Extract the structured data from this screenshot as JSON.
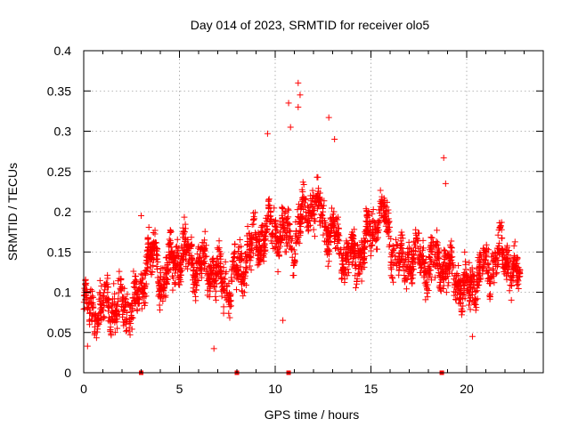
{
  "chart_data": {
    "type": "scatter",
    "title": "Day 014 of 2023, SRMTID for receiver olo5",
    "xlabel": "GPS time / hours",
    "ylabel": "SRMTID / TECUs",
    "xlim": [
      0,
      24
    ],
    "ylim": [
      0,
      0.4
    ],
    "xticks": [
      0,
      5,
      10,
      15,
      20
    ],
    "xtick_labels": [
      "0",
      "5",
      "10",
      "15",
      "20"
    ],
    "yticks": [
      0,
      0.05,
      0.1,
      0.15,
      0.2,
      0.25,
      0.3,
      0.35,
      0.4
    ],
    "ytick_labels": [
      "0",
      "0.05",
      "0.1",
      "0.15",
      "0.2",
      "0.25",
      "0.3",
      "0.35",
      "0.4"
    ],
    "grid": true,
    "marker": "+",
    "color": "#ff0000",
    "series": [
      {
        "name": "SRMTID",
        "trend": [
          {
            "x": 0.0,
            "y": 0.085
          },
          {
            "x": 0.5,
            "y": 0.075
          },
          {
            "x": 1.0,
            "y": 0.08
          },
          {
            "x": 1.5,
            "y": 0.085
          },
          {
            "x": 2.0,
            "y": 0.08
          },
          {
            "x": 2.5,
            "y": 0.085
          },
          {
            "x": 3.0,
            "y": 0.09
          },
          {
            "x": 3.3,
            "y": 0.15
          },
          {
            "x": 3.6,
            "y": 0.145
          },
          {
            "x": 4.0,
            "y": 0.12
          },
          {
            "x": 4.5,
            "y": 0.13
          },
          {
            "x": 5.0,
            "y": 0.15
          },
          {
            "x": 5.5,
            "y": 0.14
          },
          {
            "x": 6.0,
            "y": 0.135
          },
          {
            "x": 6.5,
            "y": 0.13
          },
          {
            "x": 7.0,
            "y": 0.12
          },
          {
            "x": 7.5,
            "y": 0.11
          },
          {
            "x": 8.0,
            "y": 0.125
          },
          {
            "x": 8.5,
            "y": 0.145
          },
          {
            "x": 9.0,
            "y": 0.16
          },
          {
            "x": 9.5,
            "y": 0.175
          },
          {
            "x": 10.0,
            "y": 0.18
          },
          {
            "x": 10.5,
            "y": 0.17
          },
          {
            "x": 11.0,
            "y": 0.16
          },
          {
            "x": 11.5,
            "y": 0.2
          },
          {
            "x": 12.0,
            "y": 0.21
          },
          {
            "x": 12.5,
            "y": 0.185
          },
          {
            "x": 13.0,
            "y": 0.17
          },
          {
            "x": 13.5,
            "y": 0.15
          },
          {
            "x": 14.0,
            "y": 0.14
          },
          {
            "x": 14.5,
            "y": 0.15
          },
          {
            "x": 15.0,
            "y": 0.17
          },
          {
            "x": 15.5,
            "y": 0.2
          },
          {
            "x": 16.0,
            "y": 0.17
          },
          {
            "x": 16.5,
            "y": 0.13
          },
          {
            "x": 17.0,
            "y": 0.14
          },
          {
            "x": 17.5,
            "y": 0.145
          },
          {
            "x": 18.0,
            "y": 0.135
          },
          {
            "x": 18.5,
            "y": 0.14
          },
          {
            "x": 19.0,
            "y": 0.13
          },
          {
            "x": 19.5,
            "y": 0.115
          },
          {
            "x": 20.0,
            "y": 0.1
          },
          {
            "x": 20.5,
            "y": 0.12
          },
          {
            "x": 21.0,
            "y": 0.13
          },
          {
            "x": 21.5,
            "y": 0.14
          },
          {
            "x": 22.0,
            "y": 0.15
          },
          {
            "x": 22.5,
            "y": 0.12
          },
          {
            "x": 22.8,
            "y": 0.115
          }
        ],
        "spread": 0.03,
        "outliers": [
          {
            "x": 0.2,
            "y": 0.033
          },
          {
            "x": 3.0,
            "y": 0.195
          },
          {
            "x": 6.8,
            "y": 0.03
          },
          {
            "x": 9.6,
            "y": 0.297
          },
          {
            "x": 10.7,
            "y": 0.335
          },
          {
            "x": 10.8,
            "y": 0.305
          },
          {
            "x": 11.2,
            "y": 0.36
          },
          {
            "x": 11.3,
            "y": 0.345
          },
          {
            "x": 11.2,
            "y": 0.33
          },
          {
            "x": 12.8,
            "y": 0.317
          },
          {
            "x": 13.1,
            "y": 0.29
          },
          {
            "x": 18.8,
            "y": 0.267
          },
          {
            "x": 18.9,
            "y": 0.235
          },
          {
            "x": 10.4,
            "y": 0.065
          },
          {
            "x": 20.3,
            "y": 0.045
          }
        ]
      }
    ],
    "xaxis_marks": [
      3.0,
      8.0,
      10.7,
      18.7
    ]
  }
}
